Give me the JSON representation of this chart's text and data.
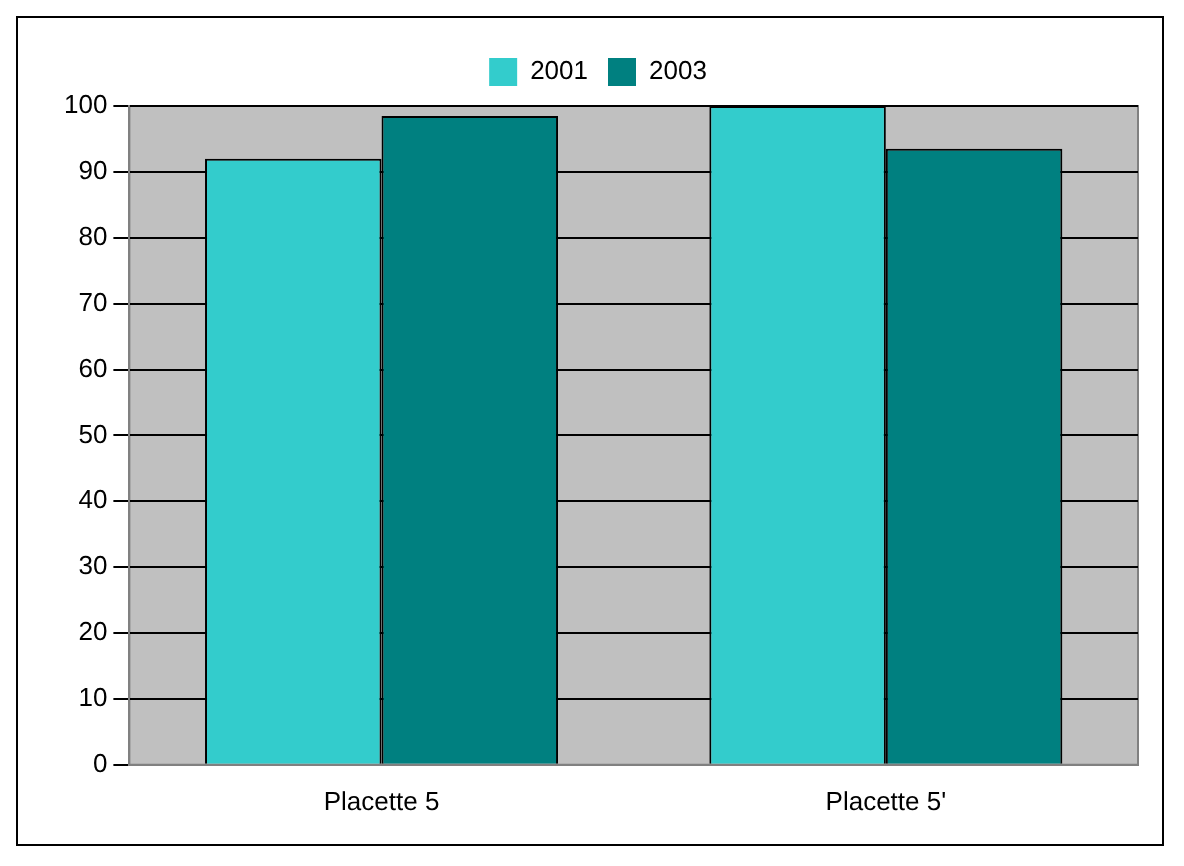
{
  "chart_data": {
    "type": "bar",
    "categories": [
      "Placette 5",
      "Placette 5'"
    ],
    "series": [
      {
        "name": "2001",
        "color": "#33cccc",
        "values": [
          92,
          100
        ]
      },
      {
        "name": "2003",
        "color": "#008080",
        "values": [
          98.5,
          93.5
        ]
      }
    ],
    "ylim": [
      0,
      100
    ],
    "yticks": [
      0,
      10,
      20,
      30,
      40,
      50,
      60,
      70,
      80,
      90,
      100
    ],
    "grid": "y",
    "legend": "top"
  }
}
